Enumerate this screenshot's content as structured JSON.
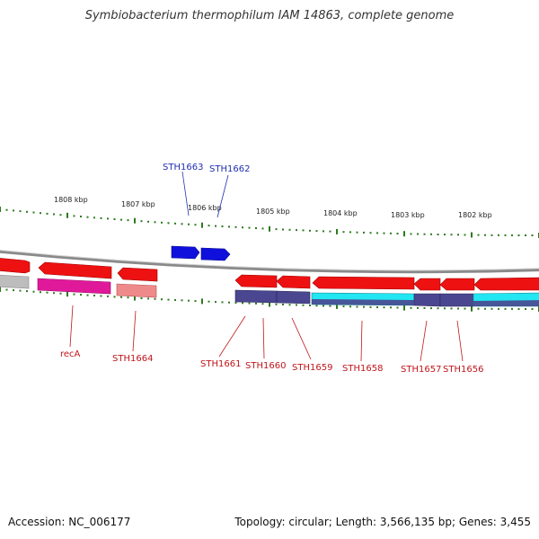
{
  "title": "Symbiobacterium thermophilum IAM 14863, complete genome",
  "footer": {
    "accession": "Accession: NC_006177",
    "summary": "Topology: circular; Length: 3,566,135 bp; Genes: 3,455"
  },
  "colors": {
    "backbone": "#8a8a8a",
    "tick": "#2d7a1f",
    "top_label": "#1f2fb0",
    "bottom_label": "#c0151b",
    "gene_red": "#ee1111",
    "gene_blue": "#1010dd",
    "gene_magenta": "#e0199a",
    "gene_salmon": "#ef8a8a",
    "gene_gray": "#bdbdbd",
    "gene_navy": "#4a468f",
    "gene_cyan": "#22e6f2"
  },
  "kbp_labels": [
    "1808 kbp",
    "1807 kbp",
    "1806 kbp",
    "1805 kbp",
    "1804 kbp",
    "1803 kbp",
    "1802 kbp"
  ],
  "top_gene_labels": [
    "STH1663",
    "STH1662"
  ],
  "bottom_gene_labels": [
    "recA",
    "STH1664",
    "STH1661",
    "STH1660",
    "STH1659",
    "STH1658",
    "STH1657",
    "STH1656"
  ]
}
